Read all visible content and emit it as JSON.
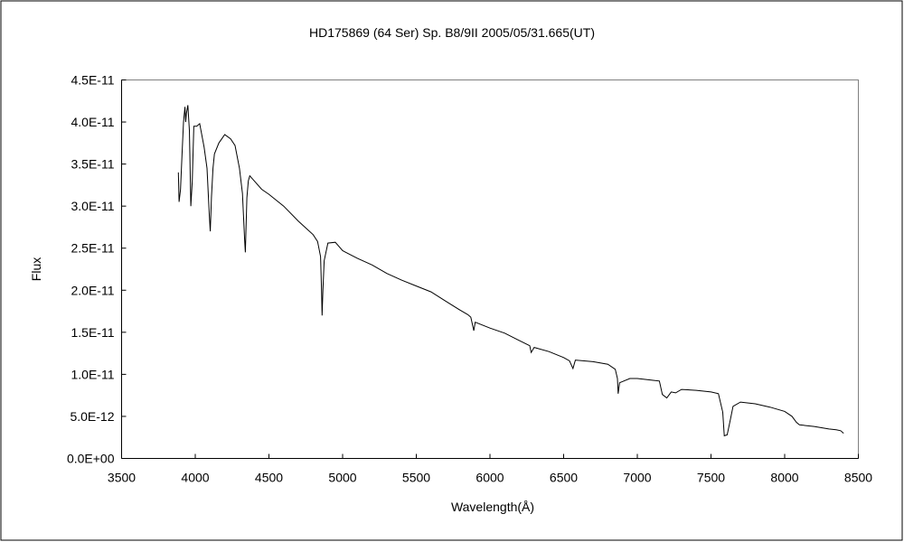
{
  "chart_data": {
    "type": "line",
    "title": "HD175869 (64 Ser)    Sp. B8/9II    2005/05/31.665(UT)",
    "xlabel": "Wavelength(Å)",
    "ylabel": "Flux",
    "xlim": [
      3500,
      8500
    ],
    "ylim": [
      0,
      4.5e-11
    ],
    "grid": false,
    "legend": "none",
    "x_ticks": [
      3500,
      4000,
      4500,
      5000,
      5500,
      6000,
      6500,
      7000,
      7500,
      8000,
      8500
    ],
    "x_tick_labels": [
      "3500",
      "4000",
      "4500",
      "5000",
      "5500",
      "6000",
      "6500",
      "7000",
      "7500",
      "8000",
      "8500"
    ],
    "y_ticks": [
      0,
      5e-12,
      1e-11,
      1.5e-11,
      2e-11,
      2.5e-11,
      3e-11,
      3.5e-11,
      4e-11,
      4.5e-11
    ],
    "y_tick_labels": [
      "0.0E+00",
      "5.0E-12",
      "1.0E-11",
      "1.5E-11",
      "2.0E-11",
      "2.5E-11",
      "3.0E-11",
      "3.5E-11",
      "4.0E-11",
      "4.5E-11"
    ],
    "series": [
      {
        "name": "Flux",
        "color": "#000000",
        "x": [
          3885,
          3890,
          3900,
          3910,
          3920,
          3930,
          3935,
          3940,
          3950,
          3960,
          3970,
          3980,
          3990,
          4010,
          4030,
          4060,
          4080,
          4095,
          4102,
          4110,
          4120,
          4130,
          4160,
          4200,
          4240,
          4270,
          4300,
          4320,
          4335,
          4340,
          4350,
          4360,
          4370,
          4400,
          4450,
          4500,
          4600,
          4700,
          4800,
          4830,
          4850,
          4857,
          4861,
          4866,
          4875,
          4900,
          4950,
          5000,
          5100,
          5200,
          5300,
          5400,
          5500,
          5600,
          5700,
          5800,
          5850,
          5870,
          5890,
          5900,
          6000,
          6100,
          6200,
          6270,
          6280,
          6300,
          6400,
          6500,
          6540,
          6555,
          6563,
          6580,
          6700,
          6800,
          6850,
          6865,
          6870,
          6880,
          6950,
          7000,
          7100,
          7150,
          7170,
          7200,
          7230,
          7260,
          7300,
          7400,
          7500,
          7550,
          7580,
          7590,
          7610,
          7630,
          7650,
          7700,
          7800,
          7900,
          8000,
          8050,
          8080,
          8100,
          8200,
          8300,
          8350,
          8380,
          8400
        ],
        "y": [
          3.4e-11,
          3.05e-11,
          3.2e-11,
          3.6e-11,
          4e-11,
          4.18e-11,
          4e-11,
          4.1e-11,
          4.2e-11,
          3.9e-11,
          3e-11,
          3.3e-11,
          3.95e-11,
          3.95e-11,
          3.98e-11,
          3.7e-11,
          3.45e-11,
          2.9e-11,
          2.7e-11,
          3.1e-11,
          3.45e-11,
          3.62e-11,
          3.75e-11,
          3.85e-11,
          3.8e-11,
          3.72e-11,
          3.45e-11,
          3.15e-11,
          2.6e-11,
          2.45e-11,
          3.1e-11,
          3.3e-11,
          3.36e-11,
          3.3e-11,
          3.2e-11,
          3.14e-11,
          3e-11,
          2.82e-11,
          2.66e-11,
          2.58e-11,
          2.4e-11,
          2e-11,
          1.7e-11,
          2e-11,
          2.35e-11,
          2.56e-11,
          2.57e-11,
          2.47e-11,
          2.38e-11,
          2.3e-11,
          2.2e-11,
          2.12e-11,
          2.05e-11,
          1.98e-11,
          1.87e-11,
          1.76e-11,
          1.71e-11,
          1.68e-11,
          1.52e-11,
          1.62e-11,
          1.55e-11,
          1.49e-11,
          1.4e-11,
          1.34e-11,
          1.26e-11,
          1.32e-11,
          1.27e-11,
          1.2e-11,
          1.16e-11,
          1.1e-11,
          1.07e-11,
          1.17e-11,
          1.15e-11,
          1.12e-11,
          1.06e-11,
          9.5e-12,
          7.7e-12,
          9e-12,
          9.5e-12,
          9.5e-12,
          9.3e-12,
          9.2e-12,
          7.6e-12,
          7.2e-12,
          7.9e-12,
          7.8e-12,
          8.2e-12,
          8.1e-12,
          7.9e-12,
          7.7e-12,
          5.5e-12,
          2.7e-12,
          2.8e-12,
          4.5e-12,
          6.2e-12,
          6.7e-12,
          6.5e-12,
          6.1e-12,
          5.6e-12,
          5e-12,
          4.3e-12,
          4e-12,
          3.8e-12,
          3.5e-12,
          3.4e-12,
          3.3e-12,
          3e-12
        ]
      }
    ]
  }
}
